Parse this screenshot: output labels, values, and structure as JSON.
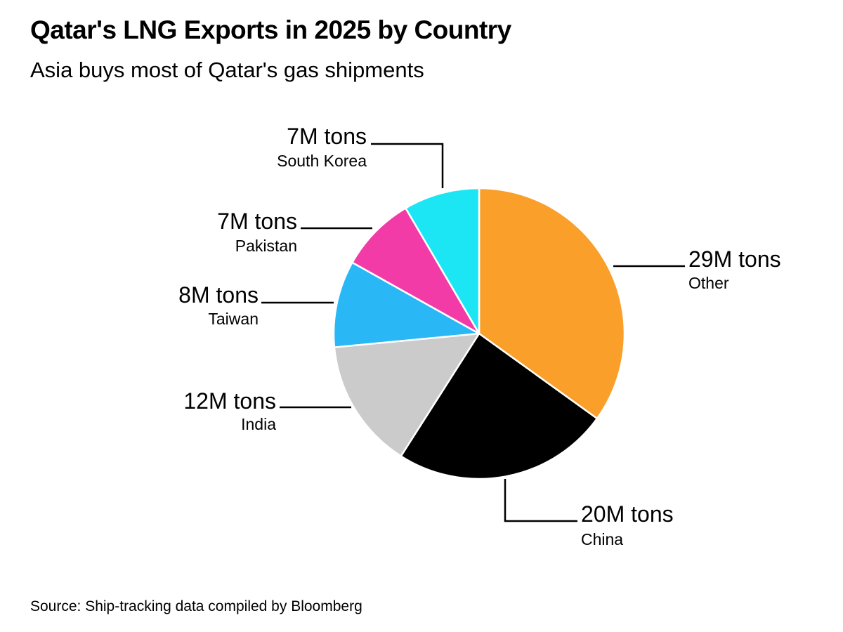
{
  "title": "Qatar's LNG Exports in 2025 by Country",
  "subtitle": "Asia buys most of Qatar's gas shipments",
  "source": "Source: Ship-tracking data compiled by Bloomberg",
  "chart_data": {
    "type": "pie",
    "title": "Qatar's LNG Exports in 2025 by Country",
    "unit": "M tons",
    "start_angle": "12 o'clock, clockwise",
    "slices": [
      {
        "name": "Other",
        "value": 29,
        "label": "29M tons",
        "color": "#f99f2a"
      },
      {
        "name": "China",
        "value": 20,
        "label": "20M tons",
        "color": "#000000"
      },
      {
        "name": "India",
        "value": 12,
        "label": "12M tons",
        "color": "#cbcbcb"
      },
      {
        "name": "Taiwan",
        "value": 8,
        "label": "8M tons",
        "color": "#29b8f5"
      },
      {
        "name": "Pakistan",
        "value": 7,
        "label": "7M tons",
        "color": "#f23ba7"
      },
      {
        "name": "South Korea",
        "value": 7,
        "label": "7M tons",
        "color": "#1de6f4"
      }
    ]
  }
}
